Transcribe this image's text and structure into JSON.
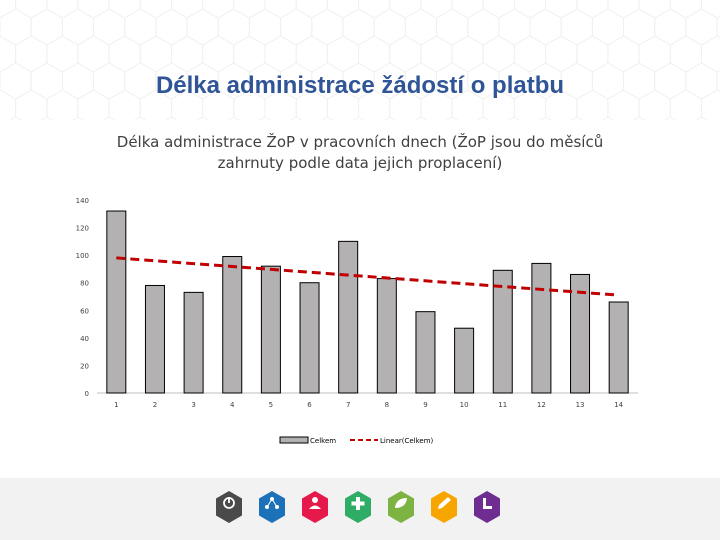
{
  "slide": {
    "title": "Délka administrace žádostí o platbu"
  },
  "chart_data": {
    "type": "bar",
    "title": "Délka administrace ŽoP v pracovních dnech (ŽoP jsou do měsíců zahrnuty podle data jejich proplacení)",
    "categories": [
      "1",
      "2",
      "3",
      "4",
      "5",
      "6",
      "7",
      "8",
      "9",
      "10",
      "11",
      "12",
      "13",
      "14"
    ],
    "series": [
      {
        "name": "Celkem",
        "values": [
          132,
          78,
          73,
          99,
          92,
          80,
          110,
          83,
          59,
          47,
          89,
          94,
          86,
          66
        ],
        "color": "#b3b1b1"
      }
    ],
    "trendline": {
      "name": "Linear(Celkem)",
      "type": "linear",
      "start": 98,
      "end": 71,
      "color": "#c00000"
    },
    "yticks": [
      0,
      20,
      40,
      60,
      80,
      100,
      120,
      140
    ],
    "ylim": [
      0,
      140
    ],
    "grid": false,
    "legend_position": "bottom"
  },
  "footer": {
    "logos": [
      {
        "icon": "power-icon",
        "color": "#4a4a4a"
      },
      {
        "icon": "network-icon",
        "color": "#1d71b8"
      },
      {
        "icon": "person-icon",
        "color": "#e6194b"
      },
      {
        "icon": "plus-icon",
        "color": "#2fac66"
      },
      {
        "icon": "leaf-icon",
        "color": "#7cb342"
      },
      {
        "icon": "pencil-icon",
        "color": "#f7a600"
      },
      {
        "icon": "chart-icon",
        "color": "#6f2c91"
      }
    ]
  }
}
